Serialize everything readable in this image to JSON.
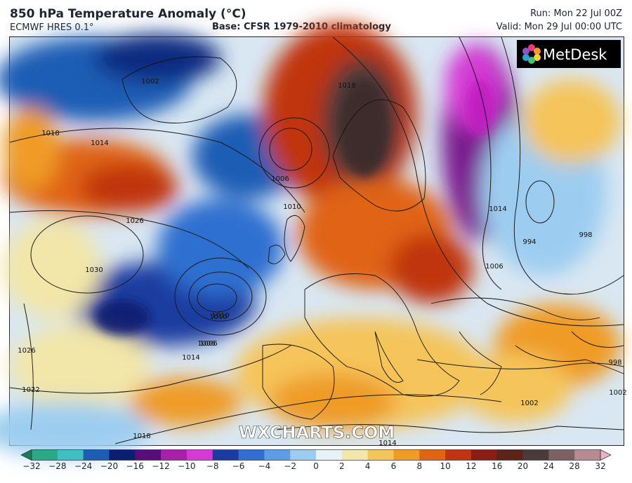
{
  "header": {
    "title": "850 hPa Temperature Anomaly (°C)",
    "model": "ECMWF HRES 0.1°",
    "base": "Base: CFSR 1979-2010 climatology",
    "run": "Run: Mon 22 Jul 00Z",
    "valid": "Valid: Mon 29 Jul 00:00 UTC"
  },
  "map": {
    "brand": "MetDesk",
    "watermark": "WXCHARTS.COM",
    "isobar_labels": [
      "1002",
      "1018",
      "1014",
      "1006",
      "1010",
      "1018",
      "1010",
      "1006",
      "994",
      "998",
      "1030",
      "1026",
      "1010",
      "1006",
      "1014",
      "1026",
      "1022",
      "1018",
      "1014",
      "1002",
      "998",
      "1002",
      "1006",
      "1014"
    ]
  },
  "colorbar": {
    "ticks": [
      "−32",
      "−28",
      "−24",
      "−20",
      "−16",
      "−12",
      "−10",
      "−8",
      "−6",
      "−4",
      "−2",
      "0",
      "2",
      "4",
      "6",
      "8",
      "10",
      "12",
      "16",
      "20",
      "24",
      "28",
      "32"
    ],
    "colors": [
      "#1a7d5a",
      "#2aa888",
      "#3dbfc4",
      "#1f5db5",
      "#0a1f70",
      "#5a0c7a",
      "#a81fa8",
      "#d43ad4",
      "#1a3ca0",
      "#2f6fd0",
      "#5a9ee6",
      "#9ccdf0",
      "#e7f1f8",
      "#f2e6a8",
      "#f5c45a",
      "#ef9b26",
      "#e06414",
      "#c03410",
      "#8a1e14",
      "#5c2418",
      "#4a3a3a",
      "#7b6064",
      "#b88a92",
      "#e6b4c4"
    ]
  }
}
